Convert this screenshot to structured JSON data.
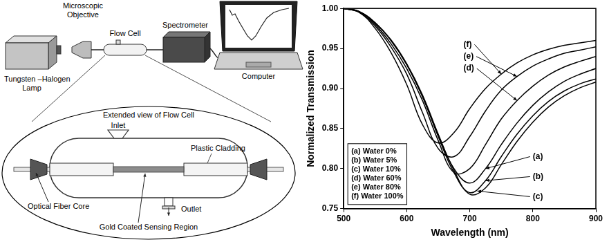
{
  "diagram": {
    "setup": {
      "lamp": [
        "Tungsten –Halogen",
        "Lamp"
      ],
      "objective": [
        "Microscopic",
        "Objective"
      ],
      "flow_cell": "Flow Cell",
      "spectrometer": "Spectrometer",
      "computer": "Computer"
    },
    "extended_view": {
      "title": "Extended view of Flow Cell",
      "inlet": "Inlet",
      "cladding": "Plastic Cladding",
      "core": "Optical Fiber Core",
      "outlet": "Outlet",
      "sensing": "Gold Coated Sensing Region"
    }
  },
  "chart_data": {
    "type": "line",
    "x_label": "Wavelength (nm)",
    "y_label": "Normalized Transmission",
    "x": [
      500,
      525,
      550,
      575,
      600,
      625,
      650,
      675,
      700,
      725,
      750,
      775,
      800,
      825,
      850,
      875,
      900
    ],
    "series": [
      {
        "name": "(a) Water 0%",
        "color": "#000000",
        "values": [
          1.0,
          0.996,
          0.982,
          0.96,
          0.93,
          0.89,
          0.842,
          0.8,
          0.782,
          0.8,
          0.83,
          0.857,
          0.879,
          0.896,
          0.909,
          0.918,
          0.925
        ]
      },
      {
        "name": "(b) Water 5%",
        "color": "#000000",
        "values": [
          1.0,
          0.996,
          0.982,
          0.96,
          0.93,
          0.89,
          0.84,
          0.795,
          0.77,
          0.785,
          0.815,
          0.843,
          0.866,
          0.884,
          0.897,
          0.906,
          0.912
        ]
      },
      {
        "name": "(c) Water 10%",
        "color": "#000000",
        "values": [
          1.0,
          0.996,
          0.982,
          0.961,
          0.931,
          0.892,
          0.843,
          0.798,
          0.768,
          0.776,
          0.805,
          0.834,
          0.858,
          0.877,
          0.891,
          0.901,
          0.908
        ]
      },
      {
        "name": "(d) Water 60%",
        "color": "#000000",
        "values": [
          1.0,
          0.996,
          0.98,
          0.956,
          0.925,
          0.885,
          0.835,
          0.795,
          0.8,
          0.83,
          0.862,
          0.885,
          0.903,
          0.917,
          0.927,
          0.934,
          0.94
        ]
      },
      {
        "name": "(e) Water 80%",
        "color": "#000000",
        "values": [
          1.0,
          0.995,
          0.978,
          0.952,
          0.918,
          0.87,
          0.825,
          0.815,
          0.84,
          0.872,
          0.898,
          0.915,
          0.928,
          0.937,
          0.944,
          0.948,
          0.952
        ]
      },
      {
        "name": "(f) Water 100%",
        "color": "#000000",
        "values": [
          1.0,
          0.995,
          0.975,
          0.945,
          0.905,
          0.855,
          0.832,
          0.845,
          0.875,
          0.9,
          0.918,
          0.932,
          0.942,
          0.949,
          0.954,
          0.957,
          0.96
        ]
      }
    ],
    "xlim": [
      500,
      900
    ],
    "xticks": [
      500,
      600,
      700,
      800,
      900
    ],
    "ylim": [
      0.75,
      1.0
    ],
    "yticks": [
      {
        "value": 0.75,
        "label": "0.75"
      },
      {
        "value": 0.8,
        "label": "0.80"
      },
      {
        "value": 0.85,
        "label": "0.85"
      },
      {
        "value": 0.9,
        "label": "0.90"
      },
      {
        "value": 0.95,
        "label": "0.95"
      },
      {
        "value": 1.0,
        "label": "1.00"
      }
    ],
    "grid": false,
    "legend": "lower left",
    "annotations": [
      {
        "text": "(f)",
        "x": 690,
        "y": 0.955,
        "target_x": 750,
        "target_y": 0.918
      },
      {
        "text": "(e)",
        "x": 690,
        "y": 0.94,
        "target_x": 775,
        "target_y": 0.915
      },
      {
        "text": "(d)",
        "x": 690,
        "y": 0.925,
        "target_x": 775,
        "target_y": 0.885
      },
      {
        "text": "(a)",
        "x": 800,
        "y": 0.815,
        "target_x": 725,
        "target_y": 0.8
      },
      {
        "text": "(b)",
        "x": 800,
        "y": 0.79,
        "target_x": 725,
        "target_y": 0.785
      },
      {
        "text": "(c)",
        "x": 800,
        "y": 0.765,
        "target_x": 712,
        "target_y": 0.772
      }
    ]
  }
}
